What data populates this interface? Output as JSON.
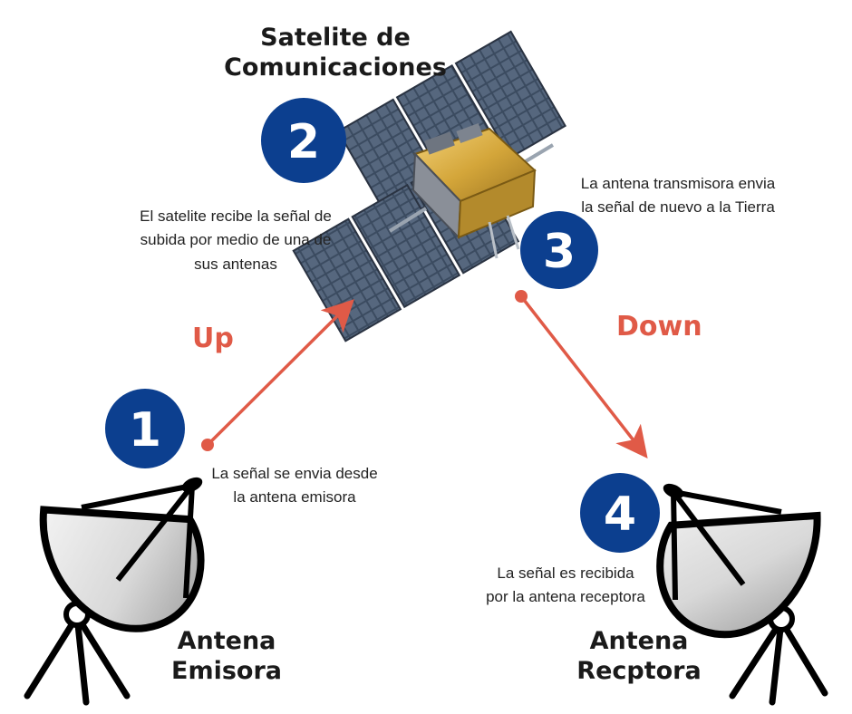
{
  "satellite": {
    "title_line1": "Satelite de",
    "title_line2": "Comunicaciones",
    "step_number": "2",
    "desc_line1": "El satelite recibe la señal de",
    "desc_line2": "subida por medio de una de",
    "desc_line3": "sus antenas"
  },
  "uplink": {
    "label": "Up",
    "step_number": "1",
    "desc_line1": "La señal se envia desde",
    "desc_line2": "la antena emisora"
  },
  "downlink": {
    "label": "Down",
    "step_number": "3",
    "desc_line1": "La antena transmisora envia",
    "desc_line2": "la señal de nuevo a la Tierra"
  },
  "receiver": {
    "step_number": "4",
    "desc_line1": "La señal es recibida",
    "desc_line2": "por la antena receptora",
    "title_line1": "Antena",
    "title_line2": "Recptora"
  },
  "emitter": {
    "title_line1": "Antena",
    "title_line2": "Emisora"
  },
  "colors": {
    "badge_blue": "#0c3f8f",
    "arrow_red": "#e05a47",
    "panel_blue": "#3a4a5e",
    "gold_foil": "#d4a63a"
  },
  "icons": [
    "satellite-icon",
    "dish-antenna-icon",
    "number-badge-icon",
    "arrow-icon"
  ]
}
